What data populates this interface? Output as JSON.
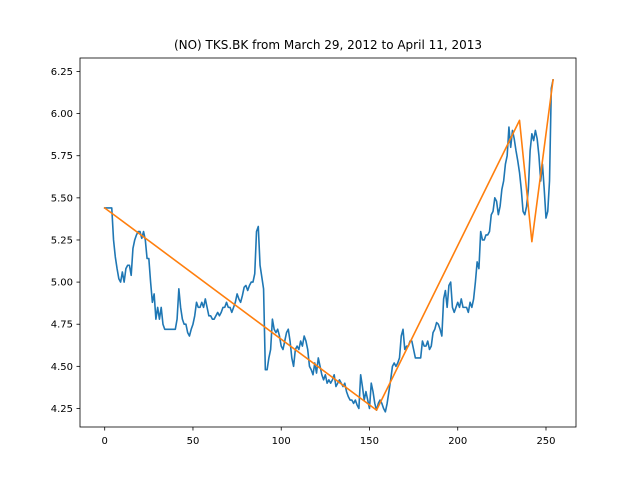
{
  "chart_data": {
    "type": "line",
    "title": "(NO) TKS.BK from March 29, 2012 to April 11, 2013",
    "xlabel": "",
    "ylabel": "",
    "xlim": [
      -14,
      267
    ],
    "ylim": [
      4.14,
      6.33
    ],
    "xticks": [
      0,
      50,
      100,
      150,
      200,
      250
    ],
    "yticks": [
      4.25,
      4.5,
      4.75,
      5.0,
      5.25,
      5.5,
      5.75,
      6.0,
      6.25
    ],
    "xtick_labels": [
      "0",
      "50",
      "100",
      "150",
      "200",
      "250"
    ],
    "ytick_labels": [
      "4.25",
      "4.50",
      "4.75",
      "5.00",
      "5.25",
      "5.50",
      "5.75",
      "6.00",
      "6.25"
    ],
    "grid": false,
    "legend": "none",
    "series": [
      {
        "color": "#1f77b4",
        "points": [
          [
            0,
            5.44
          ],
          [
            2,
            5.44
          ],
          [
            4,
            5.44
          ],
          [
            5,
            5.25
          ],
          [
            6,
            5.15
          ],
          [
            7,
            5.08
          ],
          [
            8,
            5.02
          ],
          [
            9,
            5.0
          ],
          [
            10,
            5.06
          ],
          [
            11,
            5.0
          ],
          [
            12,
            5.08
          ],
          [
            13,
            5.1
          ],
          [
            14,
            5.1
          ],
          [
            15,
            5.04
          ],
          [
            16,
            5.2
          ],
          [
            17,
            5.25
          ],
          [
            18,
            5.28
          ],
          [
            19,
            5.3
          ],
          [
            20,
            5.3
          ],
          [
            21,
            5.26
          ],
          [
            22,
            5.3
          ],
          [
            23,
            5.25
          ],
          [
            24,
            5.14
          ],
          [
            25,
            5.14
          ],
          [
            26,
            5.0
          ],
          [
            27,
            4.88
          ],
          [
            28,
            4.93
          ],
          [
            29,
            4.78
          ],
          [
            30,
            4.85
          ],
          [
            31,
            4.78
          ],
          [
            32,
            4.85
          ],
          [
            33,
            4.75
          ],
          [
            34,
            4.72
          ],
          [
            35,
            4.72
          ],
          [
            36,
            4.72
          ],
          [
            38,
            4.72
          ],
          [
            40,
            4.72
          ],
          [
            41,
            4.78
          ],
          [
            42,
            4.96
          ],
          [
            43,
            4.85
          ],
          [
            44,
            4.78
          ],
          [
            45,
            4.75
          ],
          [
            46,
            4.75
          ],
          [
            47,
            4.7
          ],
          [
            48,
            4.68
          ],
          [
            49,
            4.72
          ],
          [
            50,
            4.75
          ],
          [
            51,
            4.8
          ],
          [
            52,
            4.88
          ],
          [
            53,
            4.85
          ],
          [
            54,
            4.85
          ],
          [
            55,
            4.88
          ],
          [
            56,
            4.85
          ],
          [
            57,
            4.9
          ],
          [
            58,
            4.85
          ],
          [
            59,
            4.8
          ],
          [
            60,
            4.8
          ],
          [
            61,
            4.78
          ],
          [
            62,
            4.78
          ],
          [
            63,
            4.8
          ],
          [
            64,
            4.82
          ],
          [
            65,
            4.8
          ],
          [
            66,
            4.82
          ],
          [
            67,
            4.85
          ],
          [
            68,
            4.85
          ],
          [
            69,
            4.88
          ],
          [
            70,
            4.85
          ],
          [
            71,
            4.85
          ],
          [
            72,
            4.82
          ],
          [
            73,
            4.85
          ],
          [
            74,
            4.88
          ],
          [
            75,
            4.93
          ],
          [
            76,
            4.9
          ],
          [
            77,
            4.88
          ],
          [
            78,
            4.92
          ],
          [
            79,
            4.97
          ],
          [
            80,
            4.98
          ],
          [
            81,
            4.95
          ],
          [
            82,
            4.98
          ],
          [
            83,
            5.0
          ],
          [
            84,
            5.0
          ],
          [
            85,
            5.05
          ],
          [
            86,
            5.3
          ],
          [
            87,
            5.33
          ],
          [
            88,
            5.1
          ],
          [
            89,
            5.03
          ],
          [
            90,
            4.96
          ],
          [
            91,
            4.48
          ],
          [
            92,
            4.48
          ],
          [
            93,
            4.55
          ],
          [
            94,
            4.6
          ],
          [
            95,
            4.78
          ],
          [
            96,
            4.72
          ],
          [
            97,
            4.7
          ],
          [
            98,
            4.72
          ],
          [
            99,
            4.68
          ],
          [
            100,
            4.62
          ],
          [
            101,
            4.6
          ],
          [
            102,
            4.65
          ],
          [
            103,
            4.7
          ],
          [
            104,
            4.72
          ],
          [
            105,
            4.65
          ],
          [
            106,
            4.55
          ],
          [
            107,
            4.5
          ],
          [
            108,
            4.6
          ],
          [
            109,
            4.62
          ],
          [
            110,
            4.6
          ],
          [
            111,
            4.65
          ],
          [
            112,
            4.62
          ],
          [
            113,
            4.68
          ],
          [
            114,
            4.65
          ],
          [
            115,
            4.6
          ],
          [
            116,
            4.5
          ],
          [
            117,
            4.48
          ],
          [
            118,
            4.45
          ],
          [
            119,
            4.52
          ],
          [
            120,
            4.46
          ],
          [
            121,
            4.55
          ],
          [
            122,
            4.5
          ],
          [
            123,
            4.45
          ],
          [
            124,
            4.42
          ],
          [
            125,
            4.45
          ],
          [
            126,
            4.4
          ],
          [
            127,
            4.42
          ],
          [
            128,
            4.4
          ],
          [
            129,
            4.42
          ],
          [
            130,
            4.45
          ],
          [
            131,
            4.38
          ],
          [
            132,
            4.4
          ],
          [
            133,
            4.42
          ],
          [
            134,
            4.4
          ],
          [
            135,
            4.38
          ],
          [
            136,
            4.4
          ],
          [
            137,
            4.35
          ],
          [
            138,
            4.32
          ],
          [
            139,
            4.3
          ],
          [
            140,
            4.3
          ],
          [
            141,
            4.28
          ],
          [
            142,
            4.3
          ],
          [
            143,
            4.27
          ],
          [
            144,
            4.25
          ],
          [
            145,
            4.45
          ],
          [
            146,
            4.38
          ],
          [
            147,
            4.3
          ],
          [
            148,
            4.35
          ],
          [
            149,
            4.3
          ],
          [
            150,
            4.25
          ],
          [
            151,
            4.4
          ],
          [
            152,
            4.35
          ],
          [
            153,
            4.28
          ],
          [
            154,
            4.24
          ],
          [
            155,
            4.28
          ],
          [
            156,
            4.3
          ],
          [
            157,
            4.28
          ],
          [
            158,
            4.25
          ],
          [
            159,
            4.23
          ],
          [
            160,
            4.28
          ],
          [
            161,
            4.35
          ],
          [
            162,
            4.42
          ],
          [
            163,
            4.5
          ],
          [
            164,
            4.52
          ],
          [
            165,
            4.5
          ],
          [
            166,
            4.52
          ],
          [
            167,
            4.55
          ],
          [
            168,
            4.68
          ],
          [
            169,
            4.72
          ],
          [
            170,
            4.6
          ],
          [
            171,
            4.62
          ],
          [
            172,
            4.62
          ],
          [
            173,
            4.65
          ],
          [
            174,
            4.65
          ],
          [
            175,
            4.6
          ],
          [
            176,
            4.55
          ],
          [
            177,
            4.55
          ],
          [
            178,
            4.55
          ],
          [
            179,
            4.55
          ],
          [
            180,
            4.65
          ],
          [
            181,
            4.62
          ],
          [
            182,
            4.62
          ],
          [
            183,
            4.65
          ],
          [
            184,
            4.6
          ],
          [
            185,
            4.62
          ],
          [
            186,
            4.7
          ],
          [
            187,
            4.72
          ],
          [
            188,
            4.76
          ],
          [
            189,
            4.75
          ],
          [
            190,
            4.72
          ],
          [
            191,
            4.68
          ],
          [
            192,
            4.9
          ],
          [
            193,
            4.95
          ],
          [
            194,
            4.85
          ],
          [
            195,
            4.98
          ],
          [
            196,
            5.0
          ],
          [
            197,
            4.85
          ],
          [
            198,
            4.82
          ],
          [
            199,
            4.85
          ],
          [
            200,
            4.88
          ],
          [
            201,
            4.85
          ],
          [
            202,
            4.9
          ],
          [
            203,
            4.85
          ],
          [
            204,
            4.85
          ],
          [
            205,
            4.85
          ],
          [
            206,
            4.82
          ],
          [
            207,
            4.88
          ],
          [
            208,
            4.85
          ],
          [
            209,
            4.9
          ],
          [
            210,
            5.0
          ],
          [
            211,
            5.12
          ],
          [
            212,
            5.08
          ],
          [
            213,
            5.3
          ],
          [
            214,
            5.25
          ],
          [
            215,
            5.25
          ],
          [
            216,
            5.28
          ],
          [
            217,
            5.28
          ],
          [
            218,
            5.3
          ],
          [
            219,
            5.4
          ],
          [
            220,
            5.42
          ],
          [
            221,
            5.5
          ],
          [
            222,
            5.48
          ],
          [
            223,
            5.4
          ],
          [
            224,
            5.45
          ],
          [
            225,
            5.55
          ],
          [
            226,
            5.6
          ],
          [
            227,
            5.7
          ],
          [
            228,
            5.75
          ],
          [
            229,
            5.92
          ],
          [
            230,
            5.8
          ],
          [
            231,
            5.9
          ],
          [
            232,
            5.85
          ],
          [
            233,
            5.78
          ],
          [
            234,
            5.72
          ],
          [
            235,
            5.65
          ],
          [
            236,
            5.55
          ],
          [
            237,
            5.42
          ],
          [
            238,
            5.4
          ],
          [
            239,
            5.45
          ],
          [
            240,
            5.55
          ],
          [
            241,
            5.78
          ],
          [
            242,
            5.88
          ],
          [
            243,
            5.84
          ],
          [
            244,
            5.9
          ],
          [
            245,
            5.85
          ],
          [
            246,
            5.75
          ],
          [
            247,
            5.6
          ],
          [
            248,
            5.7
          ],
          [
            249,
            5.55
          ],
          [
            250,
            5.38
          ],
          [
            251,
            5.42
          ],
          [
            252,
            5.6
          ],
          [
            253,
            6.15
          ],
          [
            254,
            6.2
          ]
        ]
      },
      {
        "color": "#ff7f0e",
        "points": [
          [
            0,
            5.44
          ],
          [
            154,
            4.24
          ],
          [
            235,
            5.96
          ],
          [
            242,
            5.24
          ],
          [
            254,
            6.2
          ]
        ]
      }
    ]
  }
}
